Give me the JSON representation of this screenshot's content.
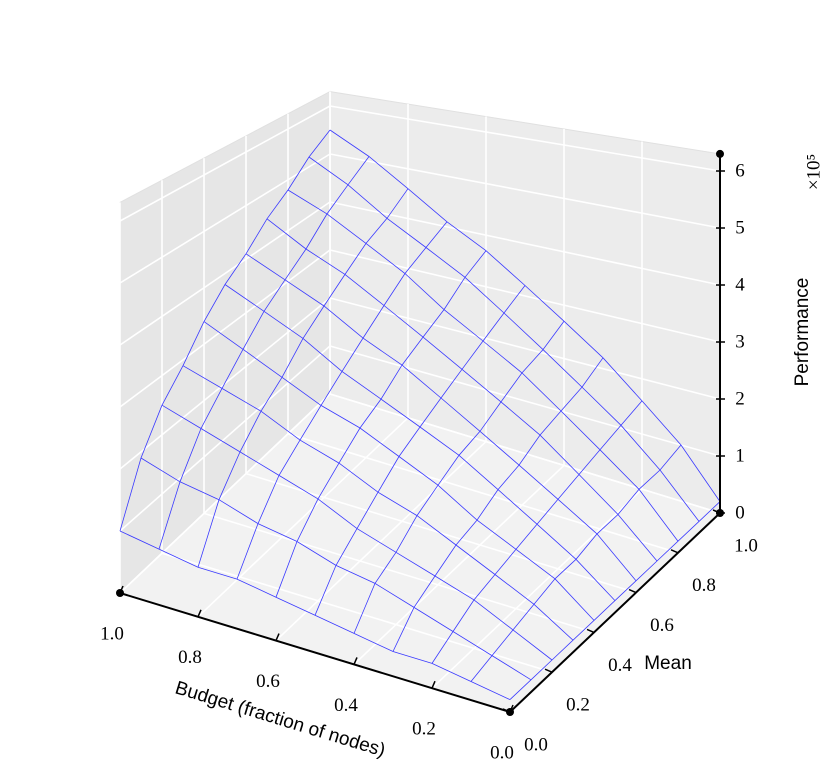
{
  "chart_data": {
    "type": "surface",
    "xlabel": "Budget (fraction of nodes)",
    "ylabel": "Mean",
    "zlabel": "Performance",
    "z_offset_label": "×10⁵",
    "color": "#3a3aff",
    "grid": true,
    "x": [
      0,
      0.1,
      0.2,
      0.3,
      0.4,
      0.5,
      0.6,
      0.7,
      0.8,
      0.9,
      1
    ],
    "y": [
      0,
      0.1,
      0.2,
      0.3,
      0.4,
      0.5,
      0.6,
      0.7,
      0.8,
      0.9,
      1
    ],
    "z": [
      [
        0.2,
        0.3,
        0.4,
        0.4,
        0.5,
        0.6,
        0.7,
        0.8,
        0.8,
        0.9,
        1.0
      ],
      [
        0.2,
        0.4,
        0.6,
        0.8,
        1.0,
        1.1,
        1.3,
        1.4,
        1.6,
        1.7,
        1.9
      ],
      [
        0.2,
        0.5,
        0.8,
        1.0,
        1.2,
        1.4,
        1.7,
        1.9,
        2.1,
        2.3,
        2.5
      ],
      [
        0.2,
        0.6,
        0.9,
        1.2,
        1.5,
        1.7,
        2.0,
        2.2,
        2.5,
        2.7,
        2.9
      ],
      [
        0.2,
        0.7,
        1.0,
        1.3,
        1.7,
        2.0,
        2.3,
        2.5,
        2.8,
        3.1,
        3.4
      ],
      [
        0.2,
        0.7,
        1.1,
        1.5,
        1.9,
        2.2,
        2.5,
        2.8,
        3.2,
        3.5,
        3.8
      ],
      [
        0.2,
        0.8,
        1.2,
        1.6,
        2.0,
        2.4,
        2.8,
        3.1,
        3.5,
        3.8,
        4.1
      ],
      [
        0.2,
        0.8,
        1.3,
        1.8,
        2.2,
        2.6,
        3.0,
        3.4,
        3.8,
        4.1,
        4.5
      ],
      [
        0.2,
        0.9,
        1.4,
        1.9,
        2.4,
        2.8,
        3.2,
        3.7,
        4.1,
        4.5,
        4.8
      ],
      [
        0.2,
        0.9,
        1.5,
        2.0,
        2.5,
        3.0,
        3.5,
        3.9,
        4.3,
        4.8,
        5.2
      ],
      [
        0.2,
        1.0,
        1.6,
        2.2,
        2.7,
        3.2,
        3.7,
        4.1,
        4.6,
        5.1,
        5.5
      ]
    ],
    "xlim": [
      0,
      1
    ],
    "ylim": [
      0,
      1
    ],
    "zlim": [
      0,
      6.3
    ],
    "xticks": [
      {
        "value": 0,
        "label": "0.0"
      },
      {
        "value": 0.2,
        "label": "0.2"
      },
      {
        "value": 0.4,
        "label": "0.4"
      },
      {
        "value": 0.6,
        "label": "0.6"
      },
      {
        "value": 0.8,
        "label": "0.8"
      },
      {
        "value": 1,
        "label": "1.0"
      }
    ],
    "yticks": [
      {
        "value": 0,
        "label": "0.0"
      },
      {
        "value": 0.2,
        "label": "0.2"
      },
      {
        "value": 0.4,
        "label": "0.4"
      },
      {
        "value": 0.6,
        "label": "0.6"
      },
      {
        "value": 0.8,
        "label": "0.8"
      },
      {
        "value": 1,
        "label": "1.0"
      }
    ],
    "zticks": [
      0,
      1,
      2,
      3,
      4,
      5,
      6
    ]
  }
}
